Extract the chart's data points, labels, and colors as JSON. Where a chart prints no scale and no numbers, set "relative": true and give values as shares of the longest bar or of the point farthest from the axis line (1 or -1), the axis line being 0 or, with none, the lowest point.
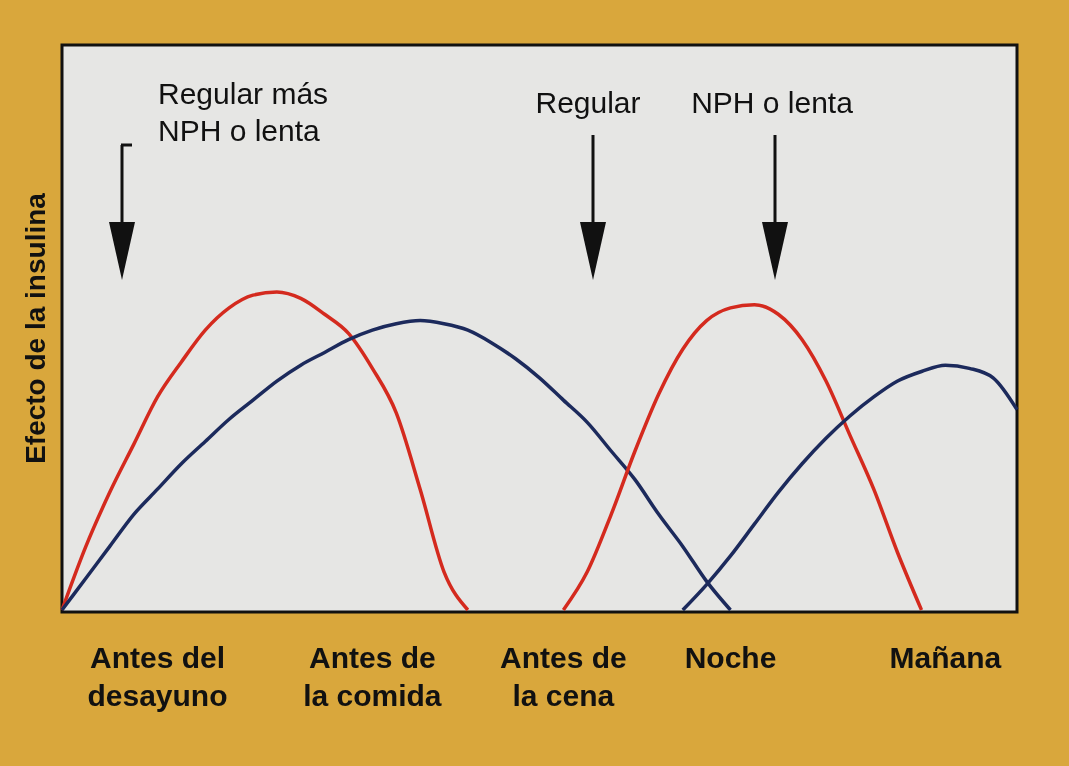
{
  "chart_data": {
    "type": "line",
    "relative": true,
    "ylabel": "Efecto de la insulina",
    "categories": [
      null,
      null,
      null,
      null,
      "Antes del\ndesayuno",
      null,
      null,
      null,
      null,
      null,
      null,
      null,
      null,
      "Antes de\nla comida",
      null,
      null,
      null,
      null,
      null,
      null,
      null,
      "Antes de\nla cena",
      null,
      null,
      null,
      null,
      null,
      null,
      "Noche",
      null,
      null,
      null,
      null,
      null,
      null,
      null,
      null,
      "Mañana",
      null,
      null,
      null
    ],
    "series": [
      {
        "color": "#d42a1e",
        "values": [
          0,
          0.2,
          0.37,
          0.52,
          0.67,
          0.78,
          0.88,
          0.95,
          0.99,
          1,
          0.98,
          0.93,
          0.87,
          0.76,
          0.62,
          0.38,
          0.12,
          0,
          null,
          null,
          null,
          null,
          null,
          null,
          null,
          null,
          null,
          null,
          null,
          null,
          null,
          null,
          null,
          null,
          null,
          null,
          null,
          null,
          null,
          null,
          null
        ]
      },
      {
        "color": "#1c2a5c",
        "values": [
          0,
          0.1,
          0.2,
          0.3,
          0.38,
          0.46,
          0.53,
          0.6,
          0.66,
          0.72,
          0.77,
          0.81,
          0.85,
          0.88,
          0.9,
          0.91,
          0.9,
          0.88,
          0.84,
          0.79,
          0.73,
          0.66,
          0.59,
          0.5,
          0.41,
          0.3,
          0.2,
          0.09,
          0,
          null,
          null,
          null,
          null,
          null,
          null,
          null,
          null,
          null,
          null,
          null,
          null
        ]
      },
      {
        "color": "#d42a1e",
        "values": [
          null,
          null,
          null,
          null,
          null,
          null,
          null,
          null,
          null,
          null,
          null,
          null,
          null,
          null,
          null,
          null,
          null,
          null,
          null,
          null,
          null,
          0,
          0.12,
          0.3,
          0.5,
          0.68,
          0.82,
          0.91,
          0.95,
          0.96,
          0.93,
          0.85,
          0.72,
          0.55,
          0.38,
          0.18,
          0,
          null,
          null,
          null,
          null
        ]
      },
      {
        "color": "#1c2a5c",
        "values": [
          null,
          null,
          null,
          null,
          null,
          null,
          null,
          null,
          null,
          null,
          null,
          null,
          null,
          null,
          null,
          null,
          null,
          null,
          null,
          null,
          null,
          null,
          null,
          null,
          null,
          null,
          0,
          0.08,
          0.17,
          0.27,
          0.37,
          0.46,
          0.54,
          0.61,
          0.67,
          0.72,
          0.75,
          0.77,
          0.76,
          0.73,
          0.63
        ]
      }
    ],
    "annotations": [
      "Regular más\nNPH o lenta",
      "Regular",
      "NPH o lenta"
    ]
  }
}
